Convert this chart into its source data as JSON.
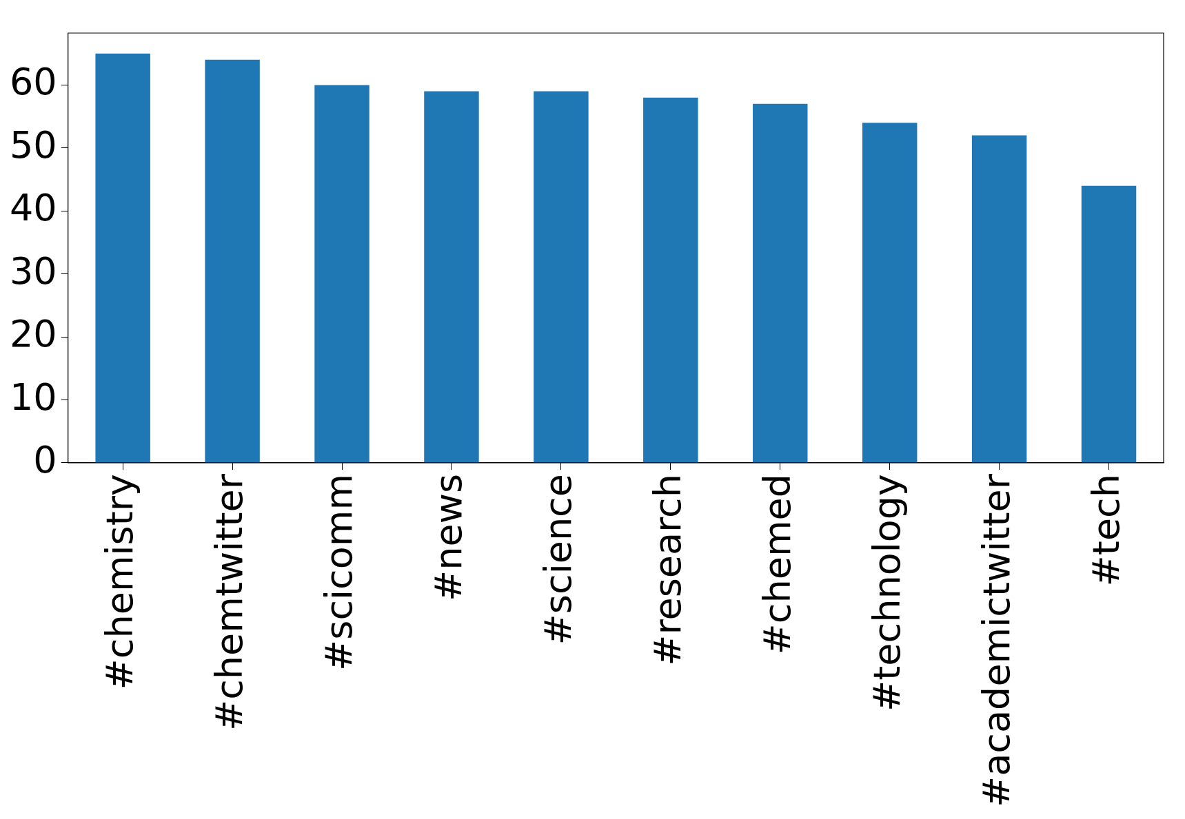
{
  "chart_data": {
    "type": "bar",
    "categories": [
      "#chemistry",
      "#chemtwitter",
      "#scicomm",
      "#news",
      "#science",
      "#research",
      "#chemed",
      "#technology",
      "#academictwitter",
      "#tech"
    ],
    "values": [
      65,
      64,
      60,
      59,
      59,
      58,
      57,
      54,
      52,
      44
    ],
    "color": "#1f77b4",
    "ylim": [
      0,
      68.25
    ],
    "yticks": [
      0,
      10,
      20,
      30,
      40,
      50,
      60
    ],
    "grid": false,
    "legend": false
  }
}
